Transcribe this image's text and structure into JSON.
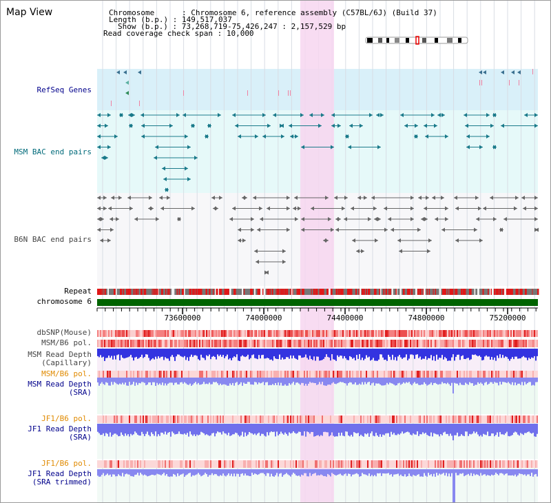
{
  "page": {
    "title": "Map View"
  },
  "header": {
    "chromosome_key": "Chromosome      ",
    "chromosome_val": ": Chromosome 6, reference assembly (C57BL/6J) (Build 37)",
    "length_key": "Length (b.p.)",
    "length_val": ": 149,517,037",
    "show_key": "Show (b.p.)",
    "show_val": ": 73,268,719-75,426,247 : 2,157,529 bp",
    "span_key": "Read coverage check span",
    "span_val": ": 10,000"
  },
  "tracks": {
    "refseq": "RefSeq Genes",
    "msm_bac": "MSM BAC end pairs",
    "b6n_bac": "B6N BAC end pairs",
    "repeat": "Repeat",
    "chromosome": "chromosome 6",
    "dbsnp": "dbSNP(Mouse)",
    "msm_b6_pol_1": "MSM/B6 pol.",
    "msm_read_depth_cap": "MSM Read Depth\n(Capillary)",
    "msm_b6_pol_2": "MSM/B6 pol.",
    "msm_read_depth_sra": "MSM Read Depth\n(SRA)",
    "jf1_b6_pol_1": "JF1/B6 pol.",
    "jf1_read_depth_sra": "JF1 Read Depth\n(SRA)",
    "jf1_b6_pol_2": "JF1/B6 pol.",
    "jf1_read_depth_trim": "JF1 Read Depth\n(SRA trimmed)"
  },
  "axis": {
    "ticks": [
      "73600000",
      "74000000",
      "74400000",
      "74800000",
      "75200000"
    ]
  },
  "colors": {
    "refseq_bg": "#d9f0f9",
    "msm_bg": "#e6f9f9",
    "highlight": "#f7d6f0",
    "chrom_green": "#006400",
    "depth_blue": "#5555ee"
  }
}
